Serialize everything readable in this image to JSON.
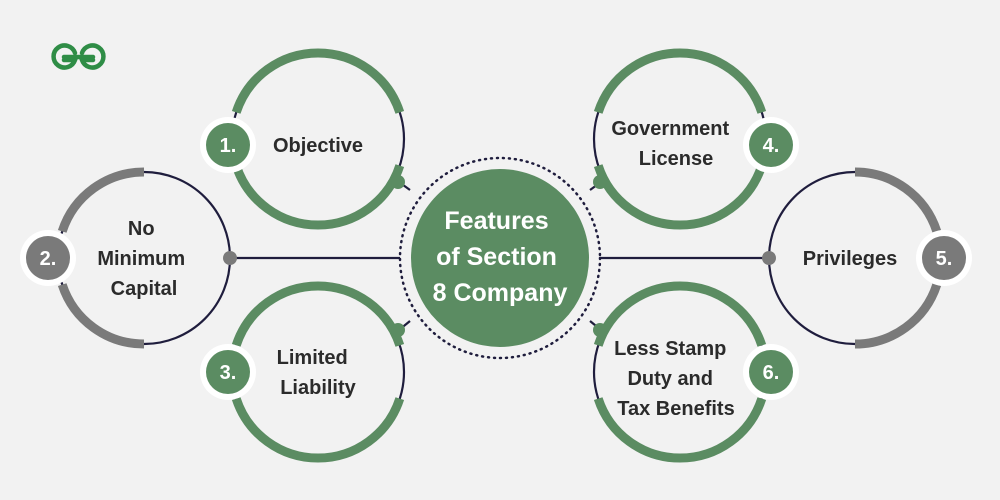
{
  "brand": {
    "logo_icon": "gfg-logo-icon",
    "color": "#2f8d46"
  },
  "center": {
    "lines": [
      "Features",
      "of Section",
      "8 Company"
    ]
  },
  "features": [
    {
      "number": "1.",
      "label": [
        "Objective"
      ]
    },
    {
      "number": "2.",
      "label": [
        "No",
        "Minimum",
        "Capital"
      ]
    },
    {
      "number": "3.",
      "label": [
        "Limited",
        "Liability"
      ]
    },
    {
      "number": "4.",
      "label": [
        "Government",
        "License"
      ]
    },
    {
      "number": "5.",
      "label": [
        "Privileges"
      ]
    },
    {
      "number": "6.",
      "label": [
        "Less Stamp",
        "Duty and",
        "Tax Benefits"
      ]
    }
  ],
  "colors": {
    "green": "#5b8c62",
    "gray": "#7a7a7a",
    "navy": "#1f1d3d",
    "background": "#f2f2f2"
  }
}
